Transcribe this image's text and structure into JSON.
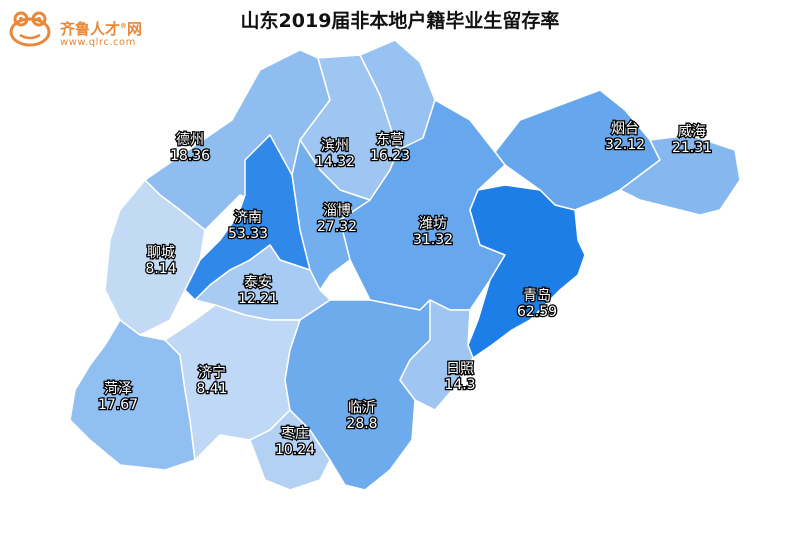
{
  "title": "山东2019届非本地户籍毕业生留存率",
  "logo": {
    "name": "齐鲁人才",
    "suffix": "网",
    "reg_mark": "®",
    "url": "www.qlrc.com"
  },
  "scale_colors": {
    "low": "#c3daf5",
    "high": "#1c7ee6"
  },
  "cities": [
    {
      "name": "青岛",
      "value": "62.59"
    },
    {
      "name": "济南",
      "value": "53.33"
    },
    {
      "name": "烟台",
      "value": "32.12"
    },
    {
      "name": "潍坊",
      "value": "31.32"
    },
    {
      "name": "临沂",
      "value": "28.8"
    },
    {
      "name": "淄博",
      "value": "27.32"
    },
    {
      "name": "威海",
      "value": "21.31"
    },
    {
      "name": "德州",
      "value": "18.36"
    },
    {
      "name": "菏泽",
      "value": "17.67"
    },
    {
      "name": "东营",
      "value": "16.23"
    },
    {
      "name": "滨州",
      "value": "14.32"
    },
    {
      "name": "日照",
      "value": "14.3"
    },
    {
      "name": "泰安",
      "value": "12.21"
    },
    {
      "name": "枣庄",
      "value": "10.24"
    },
    {
      "name": "济宁",
      "value": "8.41"
    },
    {
      "name": "聊城",
      "value": "8.14"
    }
  ]
}
